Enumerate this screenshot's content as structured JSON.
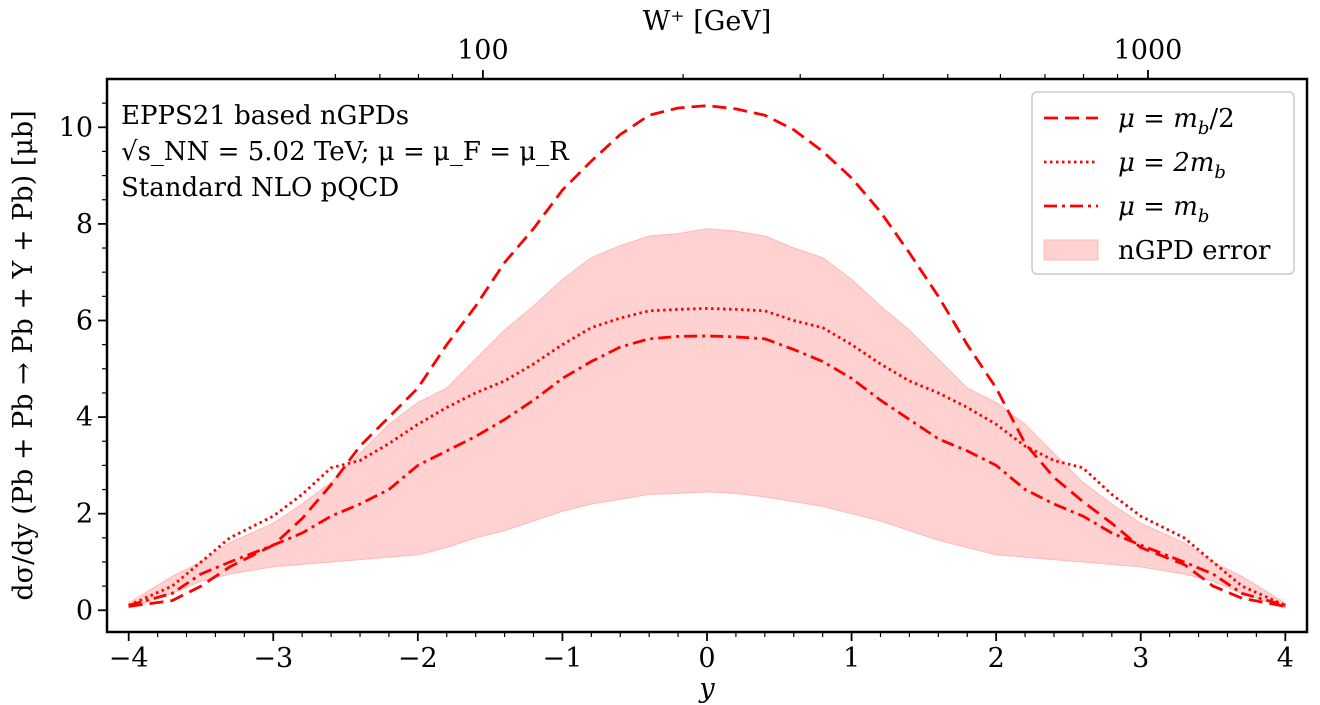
{
  "chart_data": {
    "type": "line",
    "title": "",
    "xlabel": "y",
    "ylabel": "dσ/dy (Pb + Pb → Pb + Υ + Pb) [μb]",
    "top_xlabel": "W⁺ [GeV]",
    "top_ticks": [
      {
        "label": "100",
        "value": 100
      },
      {
        "label": "1000",
        "value": 1000
      }
    ],
    "xlim": [
      -4.15,
      4.15
    ],
    "ylim": [
      -0.45,
      11.0
    ],
    "xticks": [
      -4,
      -3,
      -2,
      -1,
      0,
      1,
      2,
      3,
      4
    ],
    "xtick_labels": [
      "−4",
      "−3",
      "−2",
      "−1",
      "0",
      "1",
      "2",
      "3",
      "4"
    ],
    "yticks": [
      0,
      2,
      4,
      6,
      8,
      10
    ],
    "ytick_labels": [
      "0",
      "2",
      "4",
      "6",
      "8",
      "10"
    ],
    "annotations": [
      "EPPS21 based nGPDs",
      "√s_NN = 5.02 TeV; μ = μ_F = μ_R",
      "Standard NLO pQCD"
    ],
    "legend_position": "top-right",
    "color": "#ff0000",
    "band_color": "#ffd1d1",
    "series": [
      {
        "name": "μ = m_b/2",
        "legend_main": "μ = m",
        "legend_sub": "b",
        "legend_tail": "/2",
        "style": "dashed",
        "x": [
          -4.0,
          -3.7,
          -3.5,
          -3.3,
          -3.0,
          -2.8,
          -2.6,
          -2.4,
          -2.2,
          -2.0,
          -1.8,
          -1.6,
          -1.4,
          -1.2,
          -1.0,
          -0.8,
          -0.6,
          -0.4,
          -0.2,
          0.0,
          0.2,
          0.4,
          0.6,
          0.8,
          1.0,
          1.2,
          1.4,
          1.6,
          1.8,
          2.0,
          2.2,
          2.4,
          2.6,
          2.8,
          3.0,
          3.3,
          3.5,
          3.7,
          4.0
        ],
        "y": [
          0.08,
          0.2,
          0.5,
          0.9,
          1.35,
          1.9,
          2.6,
          3.4,
          4.0,
          4.6,
          5.5,
          6.3,
          7.2,
          7.9,
          8.7,
          9.3,
          9.85,
          10.25,
          10.4,
          10.45,
          10.38,
          10.25,
          9.95,
          9.5,
          8.95,
          8.25,
          7.4,
          6.5,
          5.5,
          4.6,
          3.45,
          2.75,
          2.25,
          1.8,
          1.3,
          0.95,
          0.5,
          0.25,
          0.08
        ]
      },
      {
        "name": "μ = 2m_b",
        "legend_main": "μ = 2m",
        "legend_sub": "b",
        "legend_tail": "",
        "style": "dotted",
        "x": [
          -4.0,
          -3.7,
          -3.5,
          -3.3,
          -3.0,
          -2.8,
          -2.6,
          -2.4,
          -2.2,
          -2.0,
          -1.8,
          -1.6,
          -1.4,
          -1.2,
          -1.0,
          -0.8,
          -0.6,
          -0.4,
          -0.2,
          0.0,
          0.2,
          0.4,
          0.6,
          0.8,
          1.0,
          1.2,
          1.4,
          1.6,
          1.8,
          2.0,
          2.2,
          2.4,
          2.6,
          2.8,
          3.0,
          3.3,
          3.5,
          3.7,
          4.0
        ],
        "y": [
          0.1,
          0.5,
          1.0,
          1.5,
          1.95,
          2.4,
          2.95,
          3.1,
          3.45,
          3.85,
          4.2,
          4.5,
          4.75,
          5.1,
          5.5,
          5.85,
          6.05,
          6.2,
          6.23,
          6.25,
          6.23,
          6.2,
          6.0,
          5.85,
          5.5,
          5.1,
          4.75,
          4.5,
          4.2,
          3.85,
          3.4,
          3.1,
          2.95,
          2.4,
          1.95,
          1.5,
          1.0,
          0.5,
          0.1
        ]
      },
      {
        "name": "μ = m_b",
        "legend_main": "μ = m",
        "legend_sub": "b",
        "legend_tail": "",
        "style": "dashdot",
        "x": [
          -4.0,
          -3.7,
          -3.5,
          -3.3,
          -3.0,
          -2.8,
          -2.6,
          -2.4,
          -2.2,
          -2.0,
          -1.8,
          -1.6,
          -1.4,
          -1.2,
          -1.0,
          -0.8,
          -0.6,
          -0.4,
          -0.2,
          0.0,
          0.2,
          0.4,
          0.6,
          0.8,
          1.0,
          1.2,
          1.4,
          1.6,
          1.8,
          2.0,
          2.2,
          2.4,
          2.6,
          2.8,
          3.0,
          3.3,
          3.5,
          3.7,
          4.0
        ],
        "y": [
          0.1,
          0.35,
          0.75,
          1.0,
          1.35,
          1.6,
          1.95,
          2.2,
          2.5,
          3.0,
          3.3,
          3.6,
          3.95,
          4.35,
          4.8,
          5.15,
          5.45,
          5.62,
          5.67,
          5.68,
          5.66,
          5.62,
          5.4,
          5.15,
          4.8,
          4.35,
          3.95,
          3.55,
          3.3,
          3.0,
          2.5,
          2.2,
          1.95,
          1.6,
          1.35,
          1.0,
          0.75,
          0.35,
          0.1
        ]
      }
    ],
    "band": {
      "name": "nGPD error",
      "x": [
        -4.0,
        -3.7,
        -3.5,
        -3.3,
        -3.0,
        -2.8,
        -2.6,
        -2.4,
        -2.2,
        -2.0,
        -1.8,
        -1.6,
        -1.4,
        -1.2,
        -1.0,
        -0.8,
        -0.6,
        -0.4,
        -0.2,
        0.0,
        0.2,
        0.4,
        0.6,
        0.8,
        1.0,
        1.2,
        1.4,
        1.6,
        1.8,
        2.0,
        2.2,
        2.4,
        2.6,
        2.8,
        3.0,
        3.3,
        3.5,
        3.7,
        4.0
      ],
      "lower": [
        0.05,
        0.35,
        0.6,
        0.75,
        0.9,
        0.95,
        1.0,
        1.05,
        1.1,
        1.15,
        1.3,
        1.5,
        1.65,
        1.85,
        2.05,
        2.2,
        2.3,
        2.4,
        2.42,
        2.45,
        2.42,
        2.35,
        2.25,
        2.15,
        2.0,
        1.85,
        1.65,
        1.45,
        1.3,
        1.15,
        1.1,
        1.05,
        1.0,
        0.95,
        0.9,
        0.75,
        0.6,
        0.35,
        0.05
      ],
      "upper": [
        0.15,
        0.7,
        1.0,
        1.4,
        1.8,
        2.2,
        2.65,
        3.25,
        3.85,
        4.3,
        4.6,
        5.2,
        5.8,
        6.3,
        6.85,
        7.3,
        7.55,
        7.75,
        7.8,
        7.9,
        7.85,
        7.75,
        7.5,
        7.3,
        6.85,
        6.3,
        5.8,
        5.2,
        4.6,
        4.3,
        3.85,
        3.25,
        2.65,
        2.2,
        1.8,
        1.4,
        1.0,
        0.7,
        0.15
      ]
    }
  }
}
